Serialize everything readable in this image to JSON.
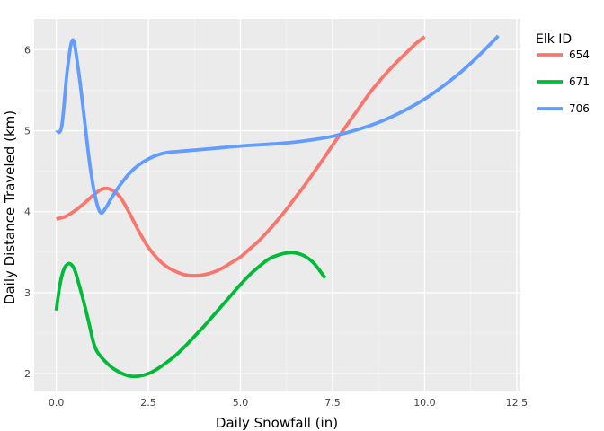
{
  "chart_data": {
    "type": "line",
    "xlabel": "Daily Snowfall (in)",
    "ylabel": "Daily Distance Traveled (km)",
    "xlim": [
      -0.6,
      12.6
    ],
    "ylim": [
      1.78,
      6.38
    ],
    "x_ticks": [
      0,
      2.5,
      5,
      7.5,
      10,
      12.5
    ],
    "x_tick_labels": [
      "0.0",
      "2.5",
      "5.0",
      "7.5",
      "10.0",
      "12.5"
    ],
    "y_ticks": [
      2,
      3,
      4,
      5,
      6
    ],
    "y_tick_labels": [
      "2",
      "3",
      "4",
      "5",
      "6"
    ],
    "grid": true,
    "legend": {
      "title": "Elk ID",
      "position": "right"
    },
    "series": [
      {
        "name": "654",
        "color": "#F8766D",
        "points": [
          [
            0,
            3.91
          ],
          [
            0.25,
            3.94
          ],
          [
            0.5,
            4.01
          ],
          [
            0.75,
            4.1
          ],
          [
            1.0,
            4.2
          ],
          [
            1.25,
            4.28
          ],
          [
            1.5,
            4.27
          ],
          [
            1.75,
            4.17
          ],
          [
            2.0,
            3.97
          ],
          [
            2.25,
            3.75
          ],
          [
            2.5,
            3.56
          ],
          [
            2.75,
            3.42
          ],
          [
            3.0,
            3.32
          ],
          [
            3.25,
            3.26
          ],
          [
            3.5,
            3.22
          ],
          [
            3.75,
            3.21
          ],
          [
            4.0,
            3.22
          ],
          [
            4.25,
            3.25
          ],
          [
            4.5,
            3.3
          ],
          [
            4.75,
            3.37
          ],
          [
            5.0,
            3.44
          ],
          [
            5.25,
            3.54
          ],
          [
            5.5,
            3.64
          ],
          [
            5.75,
            3.76
          ],
          [
            6.0,
            3.89
          ],
          [
            6.25,
            4.03
          ],
          [
            6.5,
            4.18
          ],
          [
            6.75,
            4.33
          ],
          [
            7.0,
            4.49
          ],
          [
            7.25,
            4.65
          ],
          [
            7.5,
            4.82
          ],
          [
            7.75,
            4.98
          ],
          [
            8.0,
            5.14
          ],
          [
            8.25,
            5.3
          ],
          [
            8.5,
            5.46
          ],
          [
            8.75,
            5.6
          ],
          [
            9.0,
            5.73
          ],
          [
            9.25,
            5.85
          ],
          [
            9.5,
            5.96
          ],
          [
            9.75,
            6.07
          ],
          [
            10.0,
            6.16
          ]
        ]
      },
      {
        "name": "671",
        "color": "#00BA38",
        "points": [
          [
            0,
            2.78
          ],
          [
            0.1,
            3.1
          ],
          [
            0.2,
            3.28
          ],
          [
            0.3,
            3.35
          ],
          [
            0.4,
            3.35
          ],
          [
            0.5,
            3.28
          ],
          [
            0.6,
            3.13
          ],
          [
            0.75,
            2.88
          ],
          [
            0.9,
            2.6
          ],
          [
            1.0,
            2.4
          ],
          [
            1.1,
            2.28
          ],
          [
            1.25,
            2.19
          ],
          [
            1.5,
            2.08
          ],
          [
            1.75,
            2.01
          ],
          [
            2.0,
            1.97
          ],
          [
            2.25,
            1.97
          ],
          [
            2.5,
            2.0
          ],
          [
            2.75,
            2.06
          ],
          [
            3.0,
            2.14
          ],
          [
            3.25,
            2.23
          ],
          [
            3.5,
            2.34
          ],
          [
            3.75,
            2.46
          ],
          [
            4.0,
            2.58
          ],
          [
            4.25,
            2.71
          ],
          [
            4.5,
            2.84
          ],
          [
            4.75,
            2.97
          ],
          [
            5.0,
            3.1
          ],
          [
            5.25,
            3.22
          ],
          [
            5.5,
            3.32
          ],
          [
            5.75,
            3.41
          ],
          [
            6.0,
            3.46
          ],
          [
            6.25,
            3.49
          ],
          [
            6.5,
            3.49
          ],
          [
            6.75,
            3.45
          ],
          [
            7.0,
            3.36
          ],
          [
            7.3,
            3.18
          ]
        ]
      },
      {
        "name": "706",
        "color": "#619CFF",
        "points": [
          [
            0,
            4.98
          ],
          [
            0.15,
            5.06
          ],
          [
            0.3,
            5.75
          ],
          [
            0.45,
            6.12
          ],
          [
            0.6,
            5.75
          ],
          [
            0.75,
            5.2
          ],
          [
            0.9,
            4.62
          ],
          [
            1.05,
            4.2
          ],
          [
            1.2,
            3.99
          ],
          [
            1.35,
            4.05
          ],
          [
            1.5,
            4.17
          ],
          [
            1.75,
            4.34
          ],
          [
            2.0,
            4.48
          ],
          [
            2.25,
            4.58
          ],
          [
            2.5,
            4.65
          ],
          [
            2.75,
            4.7
          ],
          [
            3.0,
            4.73
          ],
          [
            3.5,
            4.75
          ],
          [
            4.0,
            4.77
          ],
          [
            5.0,
            4.81
          ],
          [
            6.0,
            4.84
          ],
          [
            6.5,
            4.86
          ],
          [
            7.0,
            4.89
          ],
          [
            7.5,
            4.93
          ],
          [
            8.0,
            4.99
          ],
          [
            8.5,
            5.06
          ],
          [
            9.0,
            5.15
          ],
          [
            9.5,
            5.26
          ],
          [
            10.0,
            5.39
          ],
          [
            10.5,
            5.55
          ],
          [
            11.0,
            5.73
          ],
          [
            11.5,
            5.94
          ],
          [
            12.0,
            6.17
          ]
        ]
      }
    ]
  }
}
